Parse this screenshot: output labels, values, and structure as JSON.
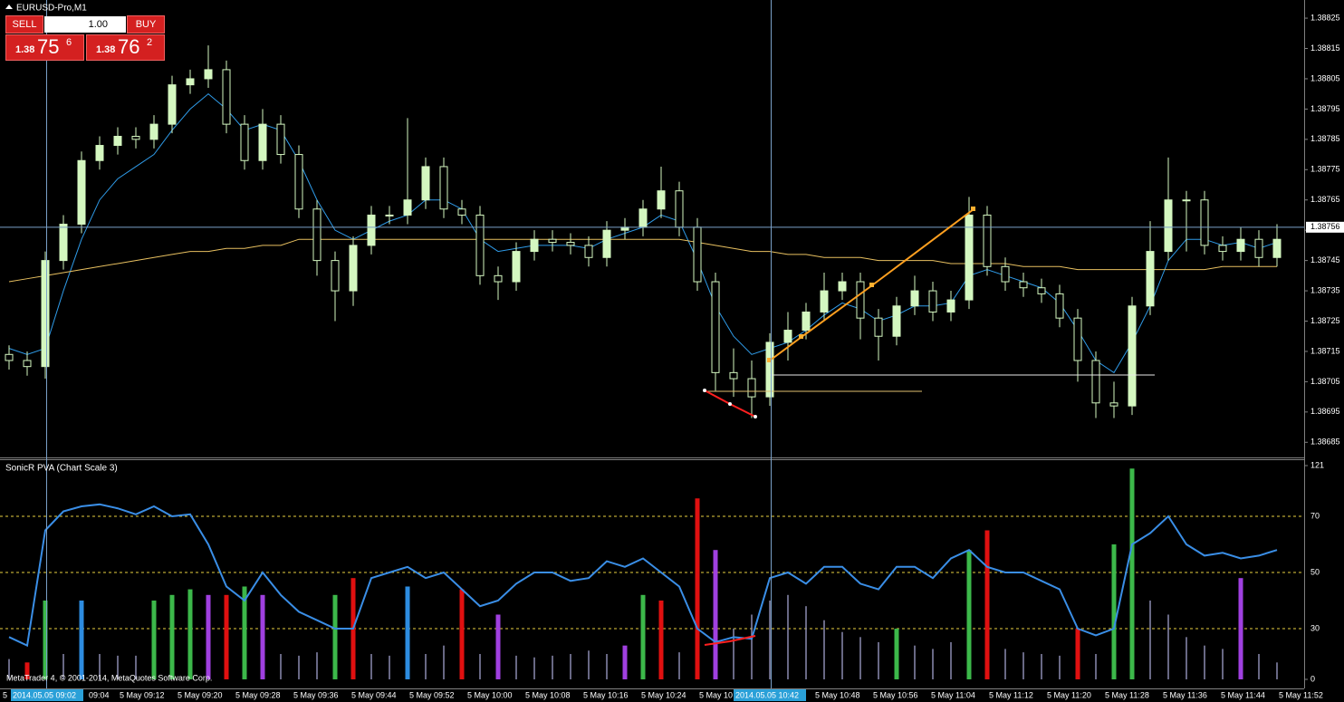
{
  "window_title": "EURUSD-Pro,M1",
  "trade_panel": {
    "sell": "SELL",
    "lot": "1.00",
    "buy": "BUY",
    "bid": {
      "big": "1.38",
      "main": "75",
      "sup": "6"
    },
    "ask": {
      "big": "1.38",
      "main": "76",
      "sup": "2"
    }
  },
  "copyright": "MetaTrader 4, © 2001-2014, MetaQuotes Software Corp.",
  "time_axis": {
    "labels": [
      "5",
      "2014.05.05 09:02",
      "09:04",
      "5 May 09:12",
      "5 May 09:20",
      "5 May 09:28",
      "5 May 09:36",
      "5 May 09:44",
      "5 May 09:52",
      "5 May 10:00",
      "5 May 10:08",
      "5 May 10:16",
      "5 May 10:24",
      "5 May 10",
      "2014.05.05 10:42",
      "5 May 10:48",
      "5 May 10:56",
      "5 May 11:04",
      "5 May 11:12",
      "5 May 11:20",
      "5 May 11:28",
      "5 May 11:36",
      "5 May 11:44",
      "5 May 11:52"
    ]
  },
  "chart_data": [
    {
      "type": "candlestick",
      "ylim": [
        1.3868,
        1.38831
      ],
      "yticks": [
        1.38685,
        1.38695,
        1.38705,
        1.38715,
        1.38725,
        1.38735,
        1.38745,
        1.38755,
        1.38765,
        1.38775,
        1.38785,
        1.38795,
        1.38805,
        1.38815,
        1.38825
      ],
      "current_price": 1.38756,
      "up_color": "#d4f7c0",
      "down_color": "#000000",
      "open": [
        1.38714,
        1.38712,
        1.3871,
        1.38745,
        1.38757,
        1.38778,
        1.38783,
        1.38786,
        1.38785,
        1.3879,
        1.38803,
        1.38805,
        1.38808,
        1.3879,
        1.38778,
        1.3879,
        1.3878,
        1.38762,
        1.38745,
        1.38735,
        1.3875,
        1.3876,
        1.3876,
        1.38765,
        1.38776,
        1.38762,
        1.3876,
        1.3874,
        1.38738,
        1.38748,
        1.38752,
        1.38751,
        1.3875,
        1.38746,
        1.38755,
        1.38756,
        1.38762,
        1.38768,
        1.38756,
        1.38738,
        1.38708,
        1.38706,
        1.387,
        1.38718,
        1.38722,
        1.38728,
        1.38735,
        1.38738,
        1.38726,
        1.3872,
        1.3873,
        1.38735,
        1.38728,
        1.38732,
        1.3876,
        1.38743,
        1.38738,
        1.38736,
        1.38734,
        1.38726,
        1.38712,
        1.38698,
        1.38697,
        1.3873,
        1.38748,
        1.38765,
        1.38765,
        1.3875,
        1.38748,
        1.38752,
        1.38746
      ],
      "high": [
        1.38717,
        1.38715,
        1.38748,
        1.3876,
        1.38781,
        1.38786,
        1.38789,
        1.38789,
        1.38793,
        1.38806,
        1.38808,
        1.38816,
        1.38811,
        1.38793,
        1.38795,
        1.38793,
        1.38783,
        1.38765,
        1.38748,
        1.38753,
        1.38763,
        1.38763,
        1.38792,
        1.38779,
        1.38779,
        1.38765,
        1.38763,
        1.38743,
        1.38751,
        1.38755,
        1.38755,
        1.38754,
        1.38753,
        1.38758,
        1.38759,
        1.38765,
        1.38776,
        1.38771,
        1.38759,
        1.38741,
        1.38716,
        1.38712,
        1.38721,
        1.38728,
        1.38731,
        1.38741,
        1.38741,
        1.38741,
        1.38729,
        1.38733,
        1.3874,
        1.38738,
        1.38735,
        1.38766,
        1.38763,
        1.38746,
        1.38741,
        1.38739,
        1.38737,
        1.38729,
        1.38715,
        1.38705,
        1.38733,
        1.38758,
        1.38779,
        1.38768,
        1.38768,
        1.38753,
        1.38756,
        1.38755,
        1.38757
      ],
      "low": [
        1.38709,
        1.38707,
        1.38706,
        1.38742,
        1.38754,
        1.38775,
        1.3878,
        1.38782,
        1.38782,
        1.38787,
        1.388,
        1.38802,
        1.38787,
        1.38775,
        1.38775,
        1.38777,
        1.38759,
        1.3874,
        1.38725,
        1.3873,
        1.38747,
        1.38757,
        1.38757,
        1.38762,
        1.38759,
        1.38757,
        1.38737,
        1.38732,
        1.38735,
        1.38745,
        1.38748,
        1.38747,
        1.38743,
        1.38743,
        1.38752,
        1.38753,
        1.38759,
        1.38753,
        1.38735,
        1.38702,
        1.387,
        1.38693,
        1.38697,
        1.38712,
        1.38719,
        1.38725,
        1.38732,
        1.38719,
        1.38712,
        1.38717,
        1.38727,
        1.38725,
        1.38725,
        1.38729,
        1.3874,
        1.38735,
        1.38733,
        1.38731,
        1.38723,
        1.38705,
        1.38693,
        1.38693,
        1.38694,
        1.38727,
        1.38745,
        1.38748,
        1.38747,
        1.38745,
        1.38745,
        1.38743,
        1.38743
      ],
      "close": [
        1.38712,
        1.3871,
        1.38745,
        1.38757,
        1.38778,
        1.38783,
        1.38786,
        1.38785,
        1.3879,
        1.38803,
        1.38805,
        1.38808,
        1.3879,
        1.38778,
        1.3879,
        1.3878,
        1.38762,
        1.38745,
        1.38735,
        1.3875,
        1.3876,
        1.3876,
        1.38765,
        1.38776,
        1.38762,
        1.3876,
        1.3874,
        1.38738,
        1.38748,
        1.38752,
        1.38751,
        1.3875,
        1.38746,
        1.38755,
        1.38756,
        1.38762,
        1.38768,
        1.38756,
        1.38738,
        1.38708,
        1.38706,
        1.387,
        1.38718,
        1.38722,
        1.38728,
        1.38735,
        1.38738,
        1.38726,
        1.3872,
        1.3873,
        1.38735,
        1.38728,
        1.38732,
        1.3876,
        1.38743,
        1.38738,
        1.38736,
        1.38734,
        1.38726,
        1.38712,
        1.38698,
        1.38697,
        1.3873,
        1.38748,
        1.38765,
        1.38765,
        1.3875,
        1.38748,
        1.38752,
        1.38746,
        1.38752
      ],
      "series": [
        {
          "color": "#2f9be8",
          "values": [
            1.38716,
            1.38714,
            1.38716,
            1.38735,
            1.38752,
            1.38765,
            1.38772,
            1.38776,
            1.3878,
            1.38788,
            1.38795,
            1.388,
            1.38795,
            1.38788,
            1.3879,
            1.38788,
            1.38778,
            1.38765,
            1.38755,
            1.38752,
            1.38755,
            1.38758,
            1.3876,
            1.38765,
            1.38765,
            1.38762,
            1.38752,
            1.38748,
            1.38749,
            1.3875,
            1.3875,
            1.3875,
            1.38749,
            1.38752,
            1.38754,
            1.38756,
            1.3876,
            1.38758,
            1.38745,
            1.3873,
            1.3872,
            1.38714,
            1.38716,
            1.38718,
            1.38722,
            1.38727,
            1.38731,
            1.38729,
            1.38725,
            1.38727,
            1.3873,
            1.3873,
            1.38731,
            1.3874,
            1.38742,
            1.3874,
            1.38738,
            1.38736,
            1.38731,
            1.38722,
            1.38712,
            1.38708,
            1.38718,
            1.3873,
            1.38745,
            1.38752,
            1.38752,
            1.3875,
            1.38751,
            1.38749,
            1.38751
          ]
        },
        {
          "color": "#e8c060",
          "values": [
            1.38738,
            1.38739,
            1.3874,
            1.38741,
            1.38742,
            1.38743,
            1.38744,
            1.38745,
            1.38746,
            1.38747,
            1.38748,
            1.38748,
            1.38749,
            1.38749,
            1.3875,
            1.3875,
            1.38752,
            1.38752,
            1.38752,
            1.38752,
            1.38752,
            1.38752,
            1.38752,
            1.38752,
            1.38752,
            1.38752,
            1.38752,
            1.38752,
            1.38752,
            1.38752,
            1.38752,
            1.38752,
            1.38752,
            1.38752,
            1.38752,
            1.38752,
            1.38752,
            1.38752,
            1.38751,
            1.3875,
            1.38749,
            1.38748,
            1.38748,
            1.38747,
            1.38747,
            1.38746,
            1.38746,
            1.38746,
            1.38745,
            1.38745,
            1.38745,
            1.38745,
            1.38744,
            1.38744,
            1.38744,
            1.38744,
            1.38743,
            1.38743,
            1.38743,
            1.38742,
            1.38742,
            1.38742,
            1.38742,
            1.38742,
            1.38742,
            1.38742,
            1.38742,
            1.38743,
            1.38743,
            1.38743,
            1.38743
          ]
        }
      ]
    },
    {
      "type": "indicator",
      "title": "SonicR PVA  (Chart Scale 3)",
      "ylim": [
        0,
        121
      ],
      "yticks": [
        0,
        30,
        50,
        70,
        121
      ],
      "bars": {
        "values": [
          12,
          10,
          40,
          15,
          40,
          15,
          14,
          14,
          40,
          42,
          44,
          42,
          42,
          45,
          42,
          15,
          14,
          16,
          42,
          48,
          15,
          14,
          45,
          15,
          20,
          44,
          15,
          35,
          14,
          13,
          14,
          15,
          17,
          15,
          20,
          42,
          40,
          16,
          88,
          58,
          30,
          35,
          40,
          42,
          38,
          33,
          28,
          25,
          22,
          30,
          20,
          18,
          22,
          58,
          65,
          18,
          16,
          15,
          14,
          30,
          15,
          60,
          118,
          40,
          35,
          25,
          20,
          18,
          48,
          15,
          10
        ],
        "colors": [
          "#8a8ab0",
          "#e01010",
          "#3cb84a",
          "#8a8ab0",
          "#2d8ce0",
          "#8a8ab0",
          "#8a8ab0",
          "#8a8ab0",
          "#3cb84a",
          "#3cb84a",
          "#3cb84a",
          "#a040e0",
          "#e01010",
          "#3cb84a",
          "#a040e0",
          "#8a8ab0",
          "#8a8ab0",
          "#8a8ab0",
          "#3cb84a",
          "#e01010",
          "#8a8ab0",
          "#8a8ab0",
          "#2d8ce0",
          "#8a8ab0",
          "#8a8ab0",
          "#e01010",
          "#8a8ab0",
          "#a040e0",
          "#8a8ab0",
          "#8a8ab0",
          "#8a8ab0",
          "#8a8ab0",
          "#8a8ab0",
          "#8a8ab0",
          "#a040e0",
          "#3cb84a",
          "#e01010",
          "#8a8ab0",
          "#e01010",
          "#a040e0",
          "#8a8ab0",
          "#8a8ab0",
          "#8a8ab0",
          "#8a8ab0",
          "#8a8ab0",
          "#8a8ab0",
          "#8a8ab0",
          "#8a8ab0",
          "#8a8ab0",
          "#3cb84a",
          "#8a8ab0",
          "#8a8ab0",
          "#8a8ab0",
          "#3cb84a",
          "#e01010",
          "#8a8ab0",
          "#8a8ab0",
          "#8a8ab0",
          "#8a8ab0",
          "#e01010",
          "#8a8ab0",
          "#3cb84a",
          "#3cb84a",
          "#8a8ab0",
          "#8a8ab0",
          "#8a8ab0",
          "#8a8ab0",
          "#8a8ab0",
          "#a040e0",
          "#8a8ab0",
          "#8a8ab0"
        ]
      },
      "series": [
        {
          "color": "#3a8ee6",
          "values": [
            25,
            20,
            65,
            75,
            80,
            82,
            78,
            72,
            80,
            70,
            72,
            60,
            45,
            40,
            50,
            42,
            36,
            33,
            30,
            30,
            48,
            50,
            52,
            48,
            50,
            44,
            38,
            40,
            46,
            50,
            50,
            47,
            48,
            54,
            52,
            55,
            50,
            45,
            30,
            22,
            25,
            24,
            48,
            50,
            46,
            52,
            52,
            46,
            44,
            52,
            52,
            48,
            55,
            58,
            52,
            50,
            50,
            47,
            44,
            30,
            26,
            30,
            60,
            64,
            70,
            60,
            56,
            57,
            55,
            56,
            58
          ]
        }
      ]
    }
  ]
}
